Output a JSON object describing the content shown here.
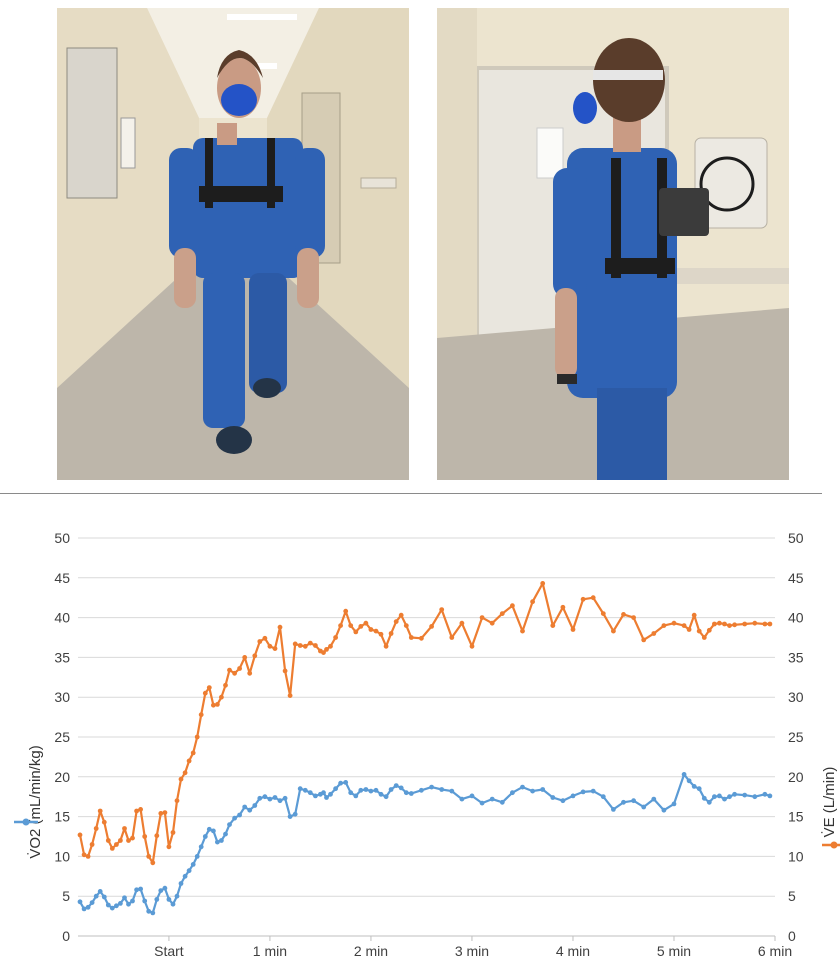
{
  "colors": {
    "vo2_series": "#5b9bd5",
    "ve_series": "#ed7d31",
    "gridline": "#d9d9d9",
    "axis": "#bfbfbf",
    "text": "#404040",
    "scrubs": "#2f62b4",
    "wall": "#ece4cf",
    "floor": "#bdb6aa"
  },
  "photos": [
    {
      "scene": "front-view-walking-with-portable-metabolic-analyzer",
      "icon": "person-walking-front-icon"
    },
    {
      "scene": "back-view-walking-with-portable-metabolic-analyzer",
      "icon": "person-walking-back-icon"
    }
  ],
  "chart_data": {
    "type": "line",
    "title": "",
    "xlabel": "",
    "x_ticks": [
      "Start",
      "1 min",
      "2 min",
      "3 min",
      "4 min",
      "5 min",
      "6 min"
    ],
    "xlim_minutes": [
      -0.9,
      6
    ],
    "ylabel_left": "V̇O2 (mL/min/kg)",
    "ylabel_right": "V̇E (L/min)",
    "ylim_left": [
      0,
      50
    ],
    "ylim_right": [
      0,
      50
    ],
    "y_ticks": [
      0,
      5,
      10,
      15,
      20,
      25,
      30,
      35,
      40,
      45,
      50
    ],
    "grid": true,
    "legend": "axis-titles",
    "series": [
      {
        "name": "V̇O2 (mL/min/kg)",
        "axis": "left",
        "x_minutes": [
          -0.88,
          -0.84,
          -0.8,
          -0.76,
          -0.72,
          -0.68,
          -0.64,
          -0.6,
          -0.56,
          -0.52,
          -0.48,
          -0.44,
          -0.4,
          -0.36,
          -0.32,
          -0.28,
          -0.24,
          -0.2,
          -0.16,
          -0.12,
          -0.08,
          -0.04,
          0.0,
          0.04,
          0.08,
          0.12,
          0.16,
          0.2,
          0.24,
          0.28,
          0.32,
          0.36,
          0.4,
          0.44,
          0.48,
          0.52,
          0.56,
          0.6,
          0.65,
          0.7,
          0.75,
          0.8,
          0.85,
          0.9,
          0.95,
          1.0,
          1.05,
          1.1,
          1.15,
          1.2,
          1.25,
          1.3,
          1.35,
          1.4,
          1.45,
          1.5,
          1.53,
          1.56,
          1.6,
          1.65,
          1.7,
          1.75,
          1.8,
          1.85,
          1.9,
          1.95,
          2.0,
          2.05,
          2.1,
          2.15,
          2.2,
          2.25,
          2.3,
          2.35,
          2.4,
          2.5,
          2.6,
          2.7,
          2.8,
          2.9,
          3.0,
          3.1,
          3.2,
          3.3,
          3.4,
          3.5,
          3.6,
          3.7,
          3.8,
          3.9,
          4.0,
          4.1,
          4.2,
          4.3,
          4.4,
          4.5,
          4.6,
          4.7,
          4.8,
          4.9,
          5.0,
          5.1,
          5.15,
          5.2,
          5.25,
          5.3,
          5.35,
          5.4,
          5.45,
          5.5,
          5.55,
          5.6,
          5.7,
          5.8,
          5.9,
          5.95
        ],
        "values": [
          4.3,
          3.4,
          3.6,
          4.2,
          5.0,
          5.6,
          4.9,
          3.9,
          3.5,
          3.8,
          4.1,
          4.8,
          4.0,
          4.4,
          5.8,
          5.9,
          4.4,
          3.1,
          2.9,
          4.6,
          5.7,
          6.0,
          4.6,
          4.0,
          5.0,
          6.6,
          7.5,
          8.2,
          9.0,
          10.0,
          11.2,
          12.5,
          13.4,
          13.2,
          11.8,
          12.0,
          12.8,
          14.0,
          14.8,
          15.2,
          16.2,
          15.8,
          16.4,
          17.3,
          17.5,
          17.2,
          17.4,
          17.0,
          17.3,
          15.0,
          15.3,
          18.5,
          18.3,
          18.0,
          17.6,
          17.8,
          18.0,
          17.4,
          17.8,
          18.5,
          19.2,
          19.3,
          18.0,
          17.6,
          18.3,
          18.4,
          18.2,
          18.3,
          17.8,
          17.5,
          18.4,
          18.9,
          18.6,
          18.0,
          17.9,
          18.3,
          18.7,
          18.4,
          18.2,
          17.2,
          17.6,
          16.7,
          17.2,
          16.8,
          18.0,
          18.7,
          18.2,
          18.4,
          17.4,
          17.0,
          17.6,
          18.1,
          18.2,
          17.5,
          15.9,
          16.8,
          17.0,
          16.2,
          17.2,
          15.8,
          16.6,
          20.3,
          19.5,
          18.8,
          18.5,
          17.3,
          16.8,
          17.5,
          17.6,
          17.2,
          17.5,
          17.8,
          17.7,
          17.5,
          17.8,
          17.6
        ]
      },
      {
        "name": "V̇E (L/min)",
        "axis": "right",
        "x_minutes": [
          -0.88,
          -0.84,
          -0.8,
          -0.76,
          -0.72,
          -0.68,
          -0.64,
          -0.6,
          -0.56,
          -0.52,
          -0.48,
          -0.44,
          -0.4,
          -0.36,
          -0.32,
          -0.28,
          -0.24,
          -0.2,
          -0.16,
          -0.12,
          -0.08,
          -0.04,
          0.0,
          0.04,
          0.08,
          0.12,
          0.16,
          0.2,
          0.24,
          0.28,
          0.32,
          0.36,
          0.4,
          0.44,
          0.48,
          0.52,
          0.56,
          0.6,
          0.65,
          0.7,
          0.75,
          0.8,
          0.85,
          0.9,
          0.95,
          1.0,
          1.05,
          1.1,
          1.15,
          1.2,
          1.25,
          1.3,
          1.35,
          1.4,
          1.45,
          1.5,
          1.53,
          1.56,
          1.6,
          1.65,
          1.7,
          1.75,
          1.8,
          1.85,
          1.9,
          1.95,
          2.0,
          2.05,
          2.1,
          2.15,
          2.2,
          2.25,
          2.3,
          2.35,
          2.4,
          2.5,
          2.6,
          2.7,
          2.8,
          2.9,
          3.0,
          3.1,
          3.2,
          3.3,
          3.4,
          3.5,
          3.6,
          3.7,
          3.8,
          3.9,
          4.0,
          4.1,
          4.2,
          4.3,
          4.4,
          4.5,
          4.6,
          4.7,
          4.8,
          4.9,
          5.0,
          5.1,
          5.15,
          5.2,
          5.25,
          5.3,
          5.35,
          5.4,
          5.45,
          5.5,
          5.55,
          5.6,
          5.7,
          5.8,
          5.9,
          5.95
        ],
        "values": [
          12.7,
          10.2,
          10.0,
          11.5,
          13.5,
          15.7,
          14.3,
          12.0,
          11.0,
          11.5,
          12.0,
          13.5,
          12.0,
          12.3,
          15.7,
          15.9,
          12.5,
          10.0,
          9.2,
          12.6,
          15.4,
          15.5,
          11.2,
          13.0,
          17.0,
          19.7,
          20.5,
          22.0,
          23.0,
          25.0,
          27.8,
          30.5,
          31.2,
          29.0,
          29.1,
          30.0,
          31.5,
          33.4,
          33.0,
          33.6,
          35.0,
          33.0,
          35.2,
          37.0,
          37.4,
          36.4,
          36.1,
          38.8,
          33.3,
          30.2,
          36.7,
          36.5,
          36.4,
          36.8,
          36.5,
          35.8,
          35.6,
          36.0,
          36.4,
          37.5,
          39.0,
          40.8,
          39.0,
          38.2,
          38.9,
          39.3,
          38.5,
          38.3,
          37.9,
          36.4,
          38.0,
          39.5,
          40.3,
          39.0,
          37.5,
          37.4,
          38.9,
          41.0,
          37.5,
          39.3,
          36.4,
          40.0,
          39.3,
          40.5,
          41.5,
          38.3,
          42.0,
          44.3,
          39.0,
          41.3,
          38.5,
          42.3,
          42.5,
          40.5,
          38.3,
          40.4,
          40.0,
          37.2,
          38.0,
          39.0,
          39.3,
          39.0,
          38.5,
          40.3,
          38.3,
          37.5,
          38.4,
          39.2,
          39.3,
          39.2,
          39.0,
          39.1,
          39.2,
          39.3,
          39.2,
          39.2
        ]
      }
    ]
  }
}
